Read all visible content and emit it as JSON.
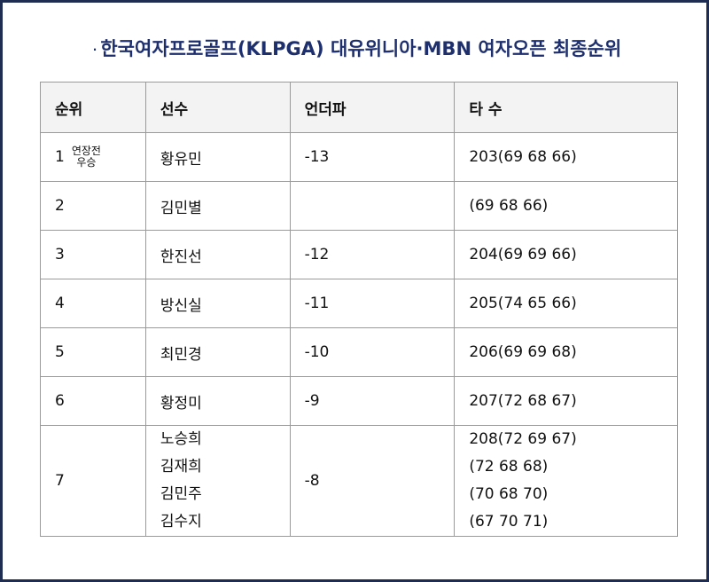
{
  "title": {
    "bullet": "·",
    "text": "한국여자프로골프(KLPGA) 대유위니아·MBN 여자오픈 최종순위"
  },
  "table": {
    "headers": [
      "순위",
      "선수",
      "언더파",
      "타 수"
    ],
    "rows": [
      {
        "rank": "1",
        "note_line1": "연장전",
        "note_line2": "우승",
        "players": [
          "황유민"
        ],
        "under": "-13",
        "strokes": [
          "203(69 68 66)"
        ]
      },
      {
        "rank": "2",
        "players": [
          "김민별"
        ],
        "under": "",
        "strokes": [
          "(69 68 66)"
        ]
      },
      {
        "rank": "3",
        "players": [
          "한진선"
        ],
        "under": "-12",
        "strokes": [
          "204(69 69 66)"
        ]
      },
      {
        "rank": "4",
        "players": [
          "방신실"
        ],
        "under": "-11",
        "strokes": [
          "205(74 65 66)"
        ]
      },
      {
        "rank": "5",
        "players": [
          "최민경"
        ],
        "under": "-10",
        "strokes": [
          "206(69 69 68)"
        ]
      },
      {
        "rank": "6",
        "players": [
          "황정미"
        ],
        "under": "-9",
        "strokes": [
          "207(72 68 67)"
        ]
      },
      {
        "rank": "7",
        "players": [
          "노승희",
          "김재희",
          "김민주",
          "김수지"
        ],
        "under": "-8",
        "strokes": [
          "208(72 69 67)",
          "(72 68 68)",
          "(70 68 70)",
          "(67 70 71)"
        ]
      }
    ]
  },
  "colors": {
    "title": "#1e2f6e",
    "frame_border": "#1f2d52",
    "grid_line": "#9a9a9a",
    "header_background": "#f3f3f3"
  }
}
